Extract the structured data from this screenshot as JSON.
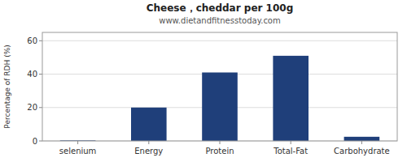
{
  "chart_data": {
    "type": "bar",
    "title": "Cheese，cheddar per 100g",
    "subtitle": "www.dietandfitnesstoday.com",
    "categories": [
      "selenium",
      "Energy",
      "Protein",
      "Total-Fat",
      "Carbohydrate"
    ],
    "values": [
      0.3,
      20,
      41,
      51,
      2.5
    ],
    "color": "#1f3f7a",
    "ylabel": "Percentage of RDH (%)",
    "ylim": [
      0,
      65
    ],
    "yticks": [
      0,
      20,
      40,
      60
    ],
    "grid": true
  }
}
